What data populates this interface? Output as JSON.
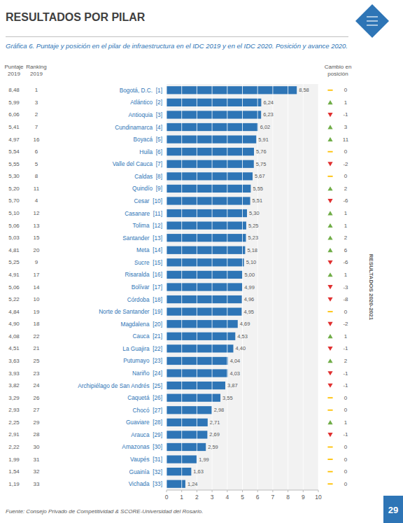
{
  "chart_data": {
    "type": "bar",
    "orientation": "horizontal",
    "title": "RESULTADOS POR PILAR",
    "subtitle": "Gráfica 6. Puntaje y posición en el pilar de infraestructura en el IDC 2019 y en el IDC 2020. Posición y avance 2020.",
    "categories": [
      "Bogotá, D.C.  [1]",
      "Atlántico  [2]",
      "Antioquia  [3]",
      "Cundinamarca  [4]",
      "Boyacá  [5]",
      "Huila  [6]",
      "Valle del Cauca  [7]",
      "Caldas  [8]",
      "Quindío  [9]",
      "Cesar  [10]",
      "Casanare  [11]",
      "Tolima  [12]",
      "Santander  [13]",
      "Meta  [14]",
      "Sucre  [15]",
      "Risaralda  [16]",
      "Bolívar  [17]",
      "Córdoba  [18]",
      "Norte de Santander  [19]",
      "Magdalena  [20]",
      "Cauca  [21]",
      "La Guajira  [22]",
      "Putumayo  [23]",
      "Nariño  [24]",
      "Archipiélago de San Andrés  [25]",
      "Caquetá  [26]",
      "Chocó  [27]",
      "Guaviare  [28]",
      "Arauca  [29]",
      "Amazonas  [30]",
      "Vaupés  [31]",
      "Guainía  [32]",
      "Vichada  [33]"
    ],
    "values": [
      8.58,
      6.24,
      6.23,
      6.02,
      5.91,
      5.76,
      5.75,
      5.67,
      5.55,
      5.51,
      5.3,
      5.25,
      5.23,
      5.18,
      5.1,
      5.0,
      4.99,
      4.96,
      4.95,
      4.69,
      4.53,
      4.4,
      4.04,
      4.03,
      3.87,
      3.55,
      2.98,
      2.71,
      2.69,
      2.59,
      1.99,
      1.63,
      1.24
    ],
    "value_labels": [
      "8,58",
      "6,24",
      "6,23",
      "6,02",
      "5,91",
      "5,76",
      "5,75",
      "5,67",
      "5,55",
      "5,51",
      "5,30",
      "5,25",
      "5,23",
      "5,18",
      "5,10",
      "5,00",
      "4,99",
      "4,96",
      "4,95",
      "4,69",
      "4,53",
      "4,40",
      "4,04",
      "4,03",
      "3,87",
      "3,55",
      "2,98",
      "2,71",
      "2,69",
      "2,59",
      "1,99",
      "1,63",
      "1,24"
    ],
    "color": "#2e75b6",
    "data_labels": true,
    "xlim": [
      0,
      10
    ],
    "xticks": [
      0,
      1,
      2,
      3,
      4,
      5,
      6,
      7,
      8,
      9,
      10
    ],
    "grid": true,
    "columns": [
      {
        "label": [
          "Puntaje",
          "2019"
        ],
        "values": [
          8.48,
          5.99,
          6.06,
          5.41,
          4.97,
          5.54,
          5.55,
          5.3,
          5.2,
          5.7,
          5.1,
          5.06,
          5.03,
          4.81,
          5.25,
          4.91,
          5.06,
          5.22,
          4.84,
          4.9,
          4.08,
          4.51,
          3.63,
          3.93,
          3.82,
          3.29,
          2.93,
          2.25,
          2.91,
          2.22,
          1.99,
          1.54,
          1.19
        ],
        "value_labels": [
          "8,48",
          "5,99",
          "6,06",
          "5,41",
          "4,97",
          "5,54",
          "5,55",
          "5,30",
          "5,20",
          "5,70",
          "5,10",
          "5,06",
          "5,03",
          "4,81",
          "5,25",
          "4,91",
          "5,06",
          "5,22",
          "4,84",
          "4,90",
          "4,08",
          "4,51",
          "3,63",
          "3,93",
          "3,82",
          "3,29",
          "2,93",
          "2,25",
          "2,91",
          "2,22",
          "1,99",
          "1,54",
          "1,19"
        ]
      },
      {
        "label": [
          "Ranking",
          "2019"
        ],
        "values": [
          1,
          3,
          2,
          7,
          16,
          6,
          5,
          8,
          11,
          4,
          12,
          13,
          15,
          20,
          9,
          17,
          14,
          10,
          19,
          18,
          22,
          21,
          25,
          23,
          24,
          26,
          27,
          29,
          28,
          30,
          31,
          32,
          33
        ]
      },
      {
        "label": [
          "Cambio en",
          "posición"
        ],
        "values": [
          0,
          1,
          -1,
          3,
          11,
          0,
          -2,
          0,
          2,
          -6,
          1,
          1,
          2,
          6,
          -6,
          1,
          -3,
          -8,
          0,
          -2,
          1,
          -1,
          2,
          -1,
          -1,
          0,
          0,
          1,
          -1,
          0,
          0,
          0,
          0
        ],
        "colors": [
          "#ffc000",
          "#70ad47",
          "#e03030",
          "#70ad47",
          "#70ad47",
          "#ffc000",
          "#e03030",
          "#ffc000",
          "#70ad47",
          "#e03030",
          "#70ad47",
          "#70ad47",
          "#70ad47",
          "#70ad47",
          "#e03030",
          "#70ad47",
          "#e03030",
          "#e03030",
          "#ffc000",
          "#e03030",
          "#70ad47",
          "#e03030",
          "#70ad47",
          "#e03030",
          "#e03030",
          "#ffc000",
          "#ffc000",
          "#70ad47",
          "#e03030",
          "#ffc000",
          "#ffc000",
          "#ffc000",
          "#ffc000"
        ]
      }
    ],
    "annotations": [
      "RESULTADOS 2020-2021",
      "Fuente: Consejo Privado de Competitividad & SCORE-Universidad del Rosario.",
      "29"
    ]
  }
}
